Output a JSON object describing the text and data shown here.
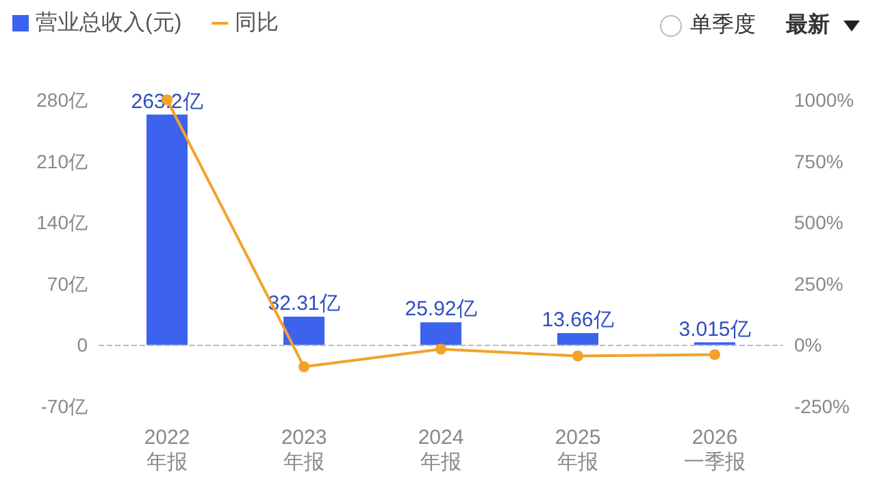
{
  "chart_data": {
    "type": "bar",
    "categories": [
      "2022\n年报",
      "2023\n年报",
      "2024\n年报",
      "2025\n年报",
      "2026\n一季报"
    ],
    "series": [
      {
        "name": "营业总收入(元)",
        "color": "#3c62ee",
        "values": [
          263.2,
          32.31,
          25.92,
          13.66,
          3.015
        ],
        "value_labels": [
          "263.2亿",
          "32.31亿",
          "25.92亿",
          "13.66亿",
          "3.015亿"
        ]
      },
      {
        "name": "同比",
        "type": "line",
        "axis": "y2",
        "color": "#f2a22b",
        "values": [
          1000,
          -89,
          -17,
          -45,
          -39
        ]
      }
    ],
    "ylim": [
      -70,
      280
    ],
    "yticks": [
      {
        "value": -70,
        "label": "-70亿"
      },
      0,
      {
        "value": 70,
        "label": "70亿"
      },
      {
        "value": 140,
        "label": "140亿"
      },
      {
        "value": 210,
        "label": "210亿"
      },
      {
        "value": 280,
        "label": "280亿"
      }
    ],
    "y2lim": [
      -250,
      1000
    ],
    "y2ticks": [
      {
        "value": -250,
        "label": "-250%"
      },
      {
        "value": 0,
        "label": "0%"
      },
      {
        "value": 250,
        "label": "250%"
      },
      {
        "value": 500,
        "label": "500%"
      },
      {
        "value": 750,
        "label": "750%"
      },
      {
        "value": 1000,
        "label": "1000%"
      }
    ],
    "ref_lines": [
      {
        "axis": "y",
        "value": 0,
        "color": "#bbbbbb",
        "line_style": "dashed"
      }
    ],
    "annotations": [
      "单季度",
      "最新"
    ],
    "legend": "top left",
    "grid": false,
    "marker": "circle"
  }
}
